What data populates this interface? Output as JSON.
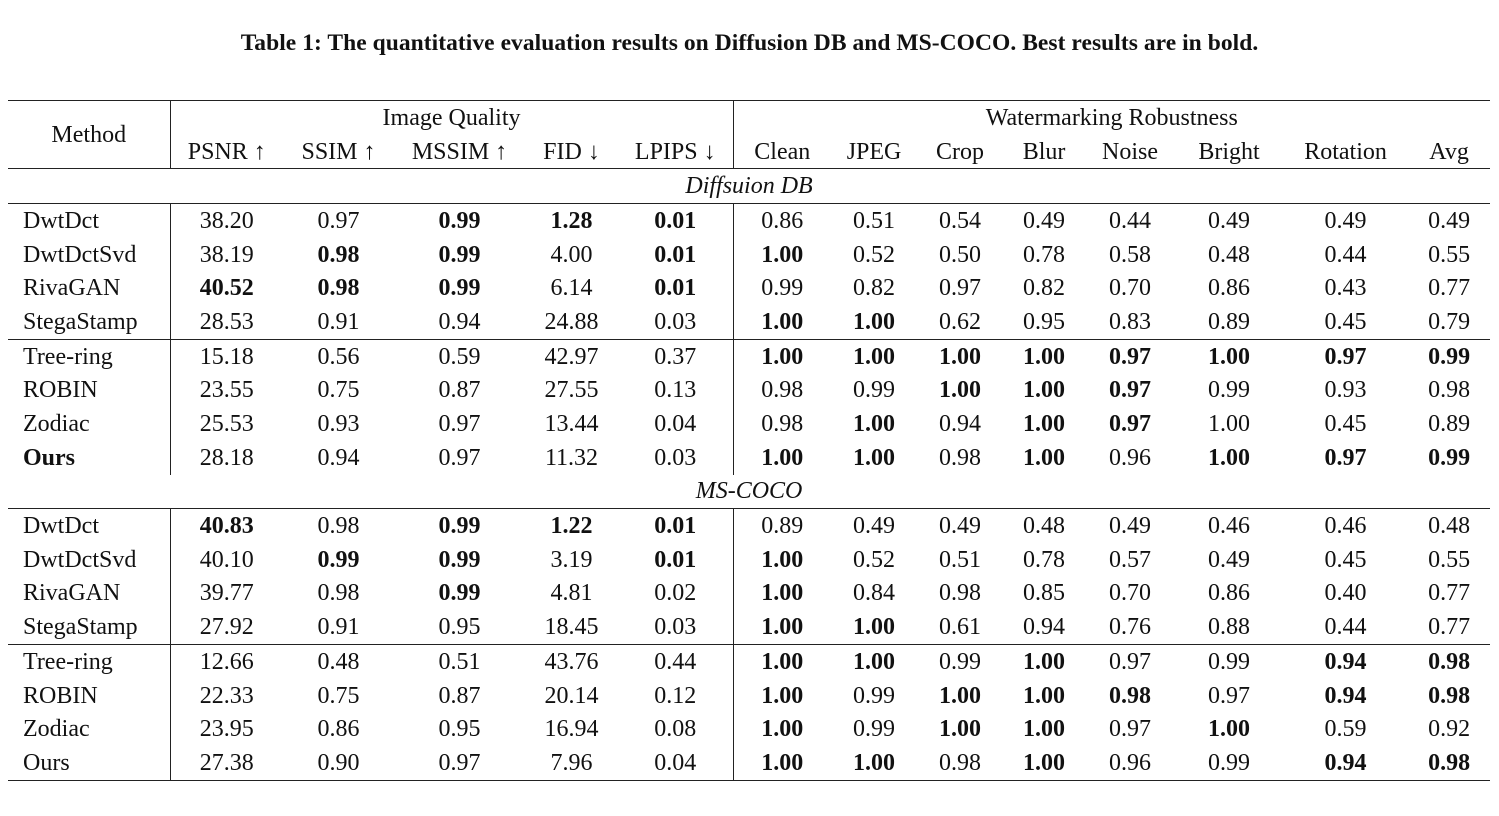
{
  "caption": "Table 1: The quantitative evaluation results on Diffusion DB and MS-COCO. Best results are in bold.",
  "headers": {
    "method": "Method",
    "image_quality": "Image Quality",
    "robustness": "Watermarking Robustness",
    "columns": [
      "PSNR ↑",
      "SSIM ↑",
      "MSSIM ↑",
      "FID ↓",
      "LPIPS ↓",
      "Clean",
      "JPEG",
      "Crop",
      "Blur",
      "Noise",
      "Bright",
      "Rotation",
      "Avg"
    ]
  },
  "groups": [
    {
      "name": "Diffsuion DB",
      "rows": [
        {
          "method": "DwtDct",
          "values": [
            "38.20",
            "0.97",
            "0.99",
            "1.28",
            "0.01",
            "0.86",
            "0.51",
            "0.54",
            "0.49",
            "0.44",
            "0.49",
            "0.49",
            "0.49"
          ],
          "bold": [
            2,
            3,
            4
          ]
        },
        {
          "method": "DwtDctSvd",
          "values": [
            "38.19",
            "0.98",
            "0.99",
            "4.00",
            "0.01",
            "1.00",
            "0.52",
            "0.50",
            "0.78",
            "0.58",
            "0.48",
            "0.44",
            "0.55"
          ],
          "bold": [
            1,
            2,
            4,
            5
          ]
        },
        {
          "method": "RivaGAN",
          "values": [
            "40.52",
            "0.98",
            "0.99",
            "6.14",
            "0.01",
            "0.99",
            "0.82",
            "0.97",
            "0.82",
            "0.70",
            "0.86",
            "0.43",
            "0.77"
          ],
          "bold": [
            0,
            1,
            2,
            4
          ]
        },
        {
          "method": "StegaStamp",
          "values": [
            "28.53",
            "0.91",
            "0.94",
            "24.88",
            "0.03",
            "1.00",
            "1.00",
            "0.62",
            "0.95",
            "0.83",
            "0.89",
            "0.45",
            "0.79"
          ],
          "bold": [
            5,
            6
          ]
        },
        {
          "method": "Tree-ring",
          "values": [
            "15.18",
            "0.56",
            "0.59",
            "42.97",
            "0.37",
            "1.00",
            "1.00",
            "1.00",
            "1.00",
            "0.97",
            "1.00",
            "0.97",
            "0.99"
          ],
          "bold": [
            5,
            6,
            7,
            8,
            9,
            10,
            11,
            12
          ]
        },
        {
          "method": "ROBIN",
          "values": [
            "23.55",
            "0.75",
            "0.87",
            "27.55",
            "0.13",
            "0.98",
            "0.99",
            "1.00",
            "1.00",
            "0.97",
            "0.99",
            "0.93",
            "0.98"
          ],
          "bold": [
            7,
            8,
            9
          ]
        },
        {
          "method": "Zodiac",
          "values": [
            "25.53",
            "0.93",
            "0.97",
            "13.44",
            "0.04",
            "0.98",
            "1.00",
            "0.94",
            "1.00",
            "0.97",
            "1.00",
            "0.45",
            "0.89"
          ],
          "bold": [
            6,
            8,
            9
          ]
        },
        {
          "method": "Ours",
          "method_bold": true,
          "values": [
            "28.18",
            "0.94",
            "0.97",
            "11.32",
            "0.03",
            "1.00",
            "1.00",
            "0.98",
            "1.00",
            "0.96",
            "1.00",
            "0.97",
            "0.99"
          ],
          "bold": [
            5,
            6,
            8,
            10,
            11,
            12
          ]
        }
      ]
    },
    {
      "name": "MS-COCO",
      "rows": [
        {
          "method": "DwtDct",
          "values": [
            "40.83",
            "0.98",
            "0.99",
            "1.22",
            "0.01",
            "0.89",
            "0.49",
            "0.49",
            "0.48",
            "0.49",
            "0.46",
            "0.46",
            "0.48"
          ],
          "bold": [
            0,
            2,
            3,
            4
          ]
        },
        {
          "method": "DwtDctSvd",
          "values": [
            "40.10",
            "0.99",
            "0.99",
            "3.19",
            "0.01",
            "1.00",
            "0.52",
            "0.51",
            "0.78",
            "0.57",
            "0.49",
            "0.45",
            "0.55"
          ],
          "bold": [
            1,
            2,
            4,
            5
          ]
        },
        {
          "method": "RivaGAN",
          "values": [
            "39.77",
            "0.98",
            "0.99",
            "4.81",
            "0.02",
            "1.00",
            "0.84",
            "0.98",
            "0.85",
            "0.70",
            "0.86",
            "0.40",
            "0.77"
          ],
          "bold": [
            2,
            5
          ]
        },
        {
          "method": "StegaStamp",
          "values": [
            "27.92",
            "0.91",
            "0.95",
            "18.45",
            "0.03",
            "1.00",
            "1.00",
            "0.61",
            "0.94",
            "0.76",
            "0.88",
            "0.44",
            "0.77"
          ],
          "bold": [
            5,
            6
          ]
        },
        {
          "method": "Tree-ring",
          "values": [
            "12.66",
            "0.48",
            "0.51",
            "43.76",
            "0.44",
            "1.00",
            "1.00",
            "0.99",
            "1.00",
            "0.97",
            "0.99",
            "0.94",
            "0.98"
          ],
          "bold": [
            5,
            6,
            8,
            11,
            12
          ]
        },
        {
          "method": "ROBIN",
          "values": [
            "22.33",
            "0.75",
            "0.87",
            "20.14",
            "0.12",
            "1.00",
            "0.99",
            "1.00",
            "1.00",
            "0.98",
            "0.97",
            "0.94",
            "0.98"
          ],
          "bold": [
            5,
            7,
            8,
            9,
            11,
            12
          ]
        },
        {
          "method": "Zodiac",
          "values": [
            "23.95",
            "0.86",
            "0.95",
            "16.94",
            "0.08",
            "1.00",
            "0.99",
            "1.00",
            "1.00",
            "0.97",
            "1.00",
            "0.59",
            "0.92"
          ],
          "bold": [
            5,
            7,
            8,
            10
          ]
        },
        {
          "method": "Ours",
          "values": [
            "27.38",
            "0.90",
            "0.97",
            "7.96",
            "0.04",
            "1.00",
            "1.00",
            "0.98",
            "1.00",
            "0.96",
            "0.99",
            "0.94",
            "0.98"
          ],
          "bold": [
            5,
            6,
            8,
            11,
            12
          ]
        }
      ]
    }
  ]
}
